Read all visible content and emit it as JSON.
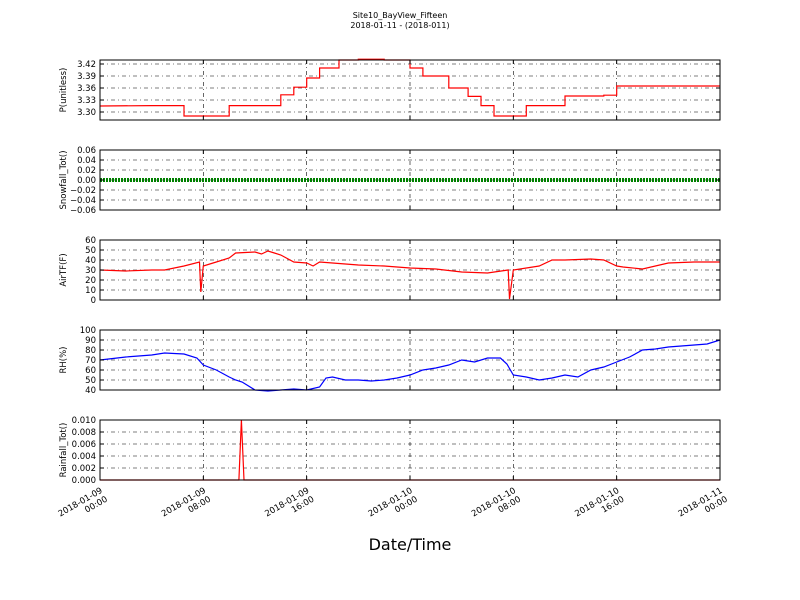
{
  "title": "Site10_BayView_Fifteen",
  "subtitle": "2018-01-11 - (2018-011)",
  "xlabel": "Date/Time",
  "x_tick_labels": [
    [
      "2018-01-09",
      "00:00"
    ],
    [
      "2018-01-09",
      "08:00"
    ],
    [
      "2018-01-09",
      "16:00"
    ],
    [
      "2018-01-10",
      "00:00"
    ],
    [
      "2018-01-10",
      "08:00"
    ],
    [
      "2018-01-10",
      "16:00"
    ],
    [
      "2018-01-11",
      "00:00"
    ]
  ],
  "chart_data": [
    {
      "type": "line",
      "ylabel": "P(unitless)",
      "color": "#ff0000",
      "xlim": [
        0,
        48
      ],
      "ylim": [
        3.28,
        3.43
      ],
      "yticks": [
        3.3,
        3.33,
        3.36,
        3.39,
        3.42
      ],
      "ytick_labels": [
        "3.30",
        "3.33",
        "3.36",
        "3.39",
        "3.42"
      ],
      "grid": true,
      "series": [
        {
          "x": [
            0,
            4,
            6.5,
            6.5,
            8,
            10,
            10,
            14,
            14,
            15,
            15,
            16,
            16,
            17,
            17,
            18.5,
            18.5,
            20,
            20,
            22,
            22,
            24,
            24,
            25,
            25,
            27,
            27,
            28.5,
            28.5,
            29.5,
            29.5,
            30.5,
            30.5,
            31.5,
            31.5,
            33,
            33,
            36,
            36,
            39,
            39,
            40,
            40,
            44,
            44,
            48
          ],
          "y": [
            3.315,
            3.316,
            3.316,
            3.29,
            3.29,
            3.29,
            3.316,
            3.316,
            3.343,
            3.343,
            3.362,
            3.362,
            3.385,
            3.385,
            3.41,
            3.41,
            3.43,
            3.43,
            3.432,
            3.432,
            3.43,
            3.43,
            3.41,
            3.41,
            3.39,
            3.39,
            3.36,
            3.36,
            3.339,
            3.339,
            3.316,
            3.316,
            3.29,
            3.29,
            3.29,
            3.29,
            3.316,
            3.316,
            3.34,
            3.34,
            3.342,
            3.342,
            3.365,
            3.365,
            3.365,
            3.365
          ]
        }
      ]
    },
    {
      "type": "line",
      "ylabel": "Snowfall_Tot()",
      "color": "#008000",
      "xlim": [
        0,
        48
      ],
      "ylim": [
        -0.06,
        0.06
      ],
      "yticks": [
        -0.06,
        -0.04,
        -0.02,
        0.0,
        0.02,
        0.04,
        0.06
      ],
      "ytick_labels": [
        "−0.06",
        "−0.04",
        "−0.02",
        "0.00",
        "0.02",
        "0.04",
        "0.06"
      ],
      "grid": true,
      "series": [
        {
          "x": [
            0,
            48
          ],
          "y": [
            0,
            0
          ]
        }
      ]
    },
    {
      "type": "line",
      "ylabel": "AirTF(F)",
      "color": "#ff0000",
      "xlim": [
        0,
        48
      ],
      "ylim": [
        0,
        60
      ],
      "yticks": [
        0,
        10,
        20,
        30,
        40,
        50,
        60
      ],
      "ytick_labels": [
        "0",
        "10",
        "20",
        "30",
        "40",
        "50",
        "60"
      ],
      "grid": true,
      "series": [
        {
          "x": [
            0,
            2,
            4,
            5,
            6.5,
            7.7,
            7.8,
            8,
            9,
            10,
            10.5,
            12,
            12.5,
            13,
            13.5,
            14,
            15,
            16,
            16.5,
            17,
            18,
            20,
            22,
            24,
            26,
            28,
            30,
            31.6,
            31.7,
            32,
            34,
            35,
            36,
            38,
            39,
            40,
            40.5,
            42,
            44,
            46,
            48
          ],
          "y": [
            30,
            29,
            30,
            30,
            34,
            38,
            8,
            34,
            38,
            42,
            47,
            48,
            46,
            49,
            47,
            45,
            38,
            37,
            34,
            38,
            37,
            35,
            34,
            32,
            31,
            28,
            27,
            30,
            1,
            30,
            34,
            40,
            40,
            41,
            40,
            34,
            33,
            31,
            37,
            38,
            38
          ]
        }
      ]
    },
    {
      "type": "line",
      "ylabel": "RH(%)",
      "color": "#0000ff",
      "xlim": [
        0,
        48
      ],
      "ylim": [
        40,
        100
      ],
      "yticks": [
        40,
        50,
        60,
        70,
        80,
        90,
        100
      ],
      "ytick_labels": [
        "40",
        "50",
        "60",
        "70",
        "80",
        "90",
        "100"
      ],
      "grid": true,
      "series": [
        {
          "x": [
            0,
            2,
            4,
            5,
            6.5,
            7.5,
            8,
            9,
            10,
            10.5,
            11,
            12,
            13,
            14,
            15,
            16,
            17,
            17.5,
            18,
            19,
            20,
            21,
            22,
            23,
            24,
            25,
            26,
            27,
            28,
            29,
            30,
            31,
            31.5,
            32,
            33,
            34,
            35,
            36,
            37,
            38,
            39,
            40,
            41,
            42,
            43,
            44,
            45,
            46,
            47,
            48
          ],
          "y": [
            70,
            73,
            75,
            77,
            76,
            72,
            65,
            60,
            53,
            50,
            48,
            40,
            39,
            40,
            41,
            40,
            43,
            52,
            53,
            50,
            50,
            49,
            50,
            52,
            55,
            60,
            62,
            65,
            70,
            68,
            72,
            72,
            66,
            55,
            53,
            50,
            52,
            55,
            53,
            60,
            63,
            68,
            73,
            80,
            81,
            83,
            84,
            85,
            86,
            90
          ]
        }
      ]
    },
    {
      "type": "line",
      "ylabel": "Rainfall_Tot()",
      "color": "#ff0000",
      "xlim": [
        0,
        48
      ],
      "ylim": [
        0,
        0.01
      ],
      "yticks": [
        0,
        0.002,
        0.004,
        0.006,
        0.008,
        0.01
      ],
      "ytick_labels": [
        "0.000",
        "0.002",
        "0.004",
        "0.006",
        "0.008",
        "0.010"
      ],
      "grid": true,
      "series": [
        {
          "x": [
            0,
            10.75,
            10.95,
            11.15,
            48
          ],
          "y": [
            0,
            0,
            0.01,
            0,
            0
          ]
        }
      ]
    }
  ]
}
